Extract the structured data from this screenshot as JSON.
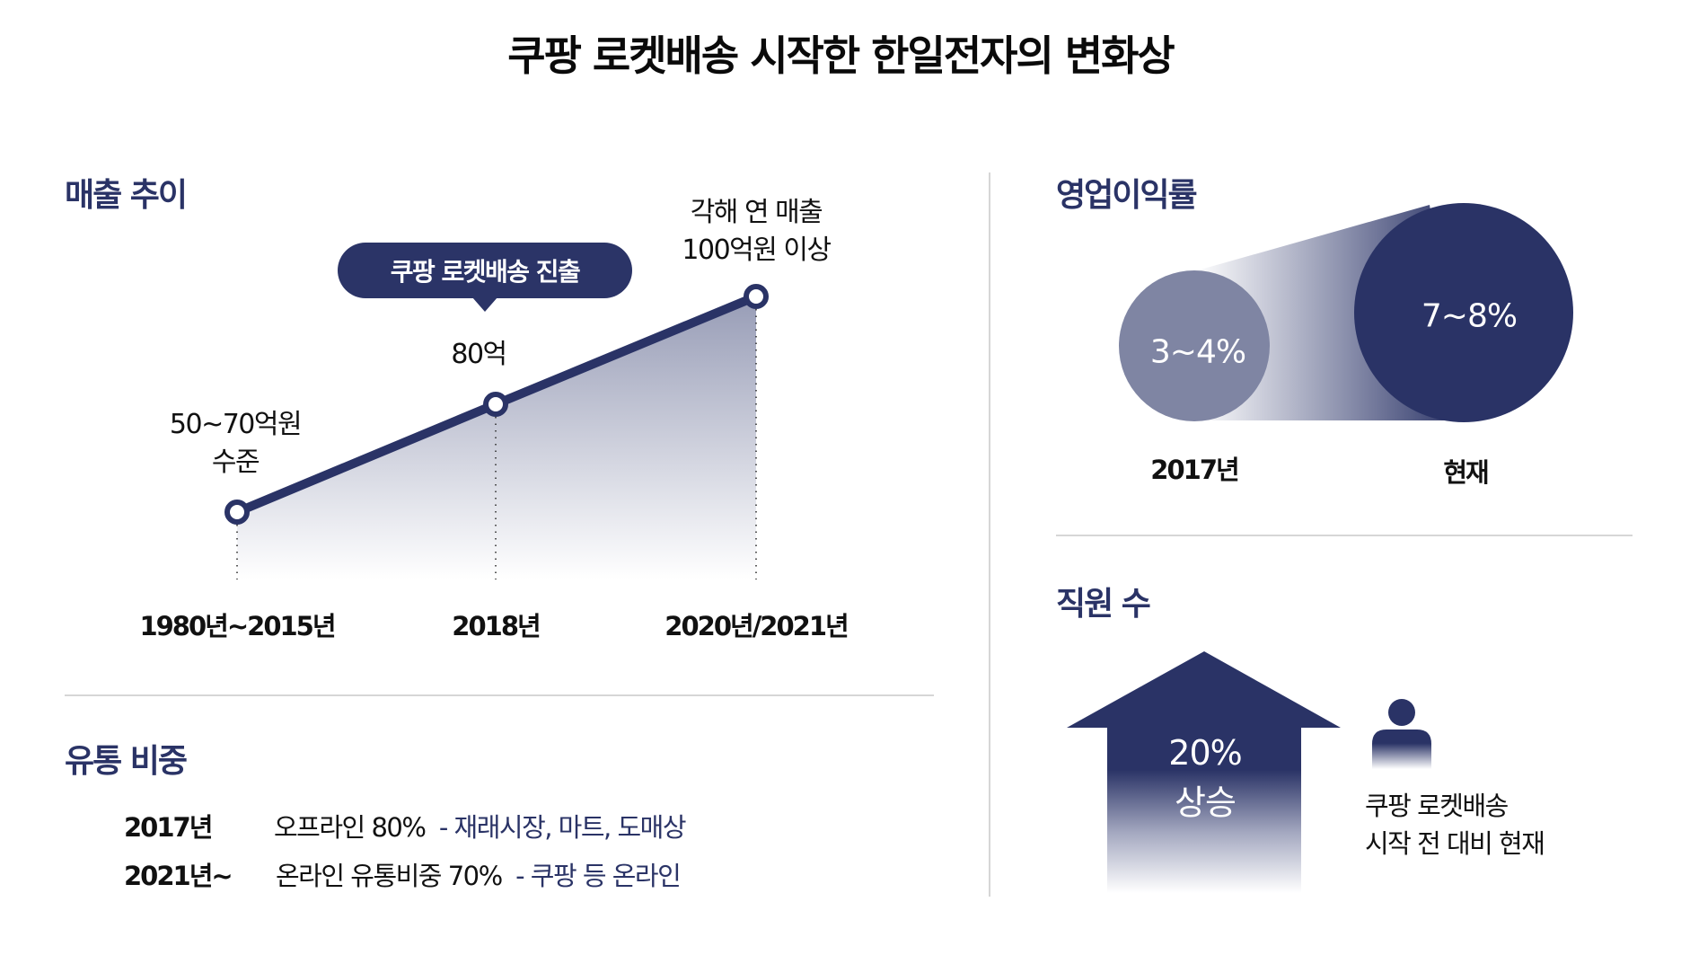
{
  "title": "쿠팡 로켓배송 시작한 한일전자의 변화상",
  "colors": {
    "navy": "#2a3366",
    "navy_light": "#7f85a3",
    "divider": "#d6d6d6"
  },
  "sales": {
    "heading": "매출 추이",
    "callout": "쿠팡 로켓배송 진출",
    "point_labels": [
      {
        "line1": "50~70억원",
        "line2": "수준"
      },
      {
        "line1": "80억",
        "line2": ""
      },
      {
        "line1": "각해 연 매출",
        "line2": "100억원 이상"
      }
    ]
  },
  "chart_data": {
    "type": "area",
    "title": "매출 추이",
    "categories": [
      "1980년~2015년",
      "2018년",
      "2020년/2021년"
    ],
    "series": [
      {
        "name": "매출(억원)",
        "values": [
          60,
          80,
          100
        ]
      }
    ],
    "value_labels": [
      "50~70억원 수준",
      "80억",
      "각해 연 매출 100억원 이상"
    ],
    "ylim": [
      20,
      100
    ],
    "annotation": "쿠팡 로켓배송 진출",
    "grid": false
  },
  "distribution": {
    "heading": "유통 비중",
    "rows": [
      {
        "year": "2017년",
        "text": "오프라인 80%",
        "note": "- 재래시장, 마트, 도매상"
      },
      {
        "year": "2021년~",
        "text": "온라인 유통비중 70%",
        "note": "- 쿠팡 등 온라인"
      }
    ]
  },
  "margin": {
    "heading": "영업이익률",
    "before": {
      "value": "3~4%",
      "label": "2017년"
    },
    "after": {
      "value": "7~8%",
      "label": "현재"
    }
  },
  "employees": {
    "heading": "직원 수",
    "value": "20%",
    "change": "상승",
    "note_line1": "쿠팡 로켓배송",
    "note_line2": "시작 전 대비 현재",
    "icon": "person-icon"
  }
}
